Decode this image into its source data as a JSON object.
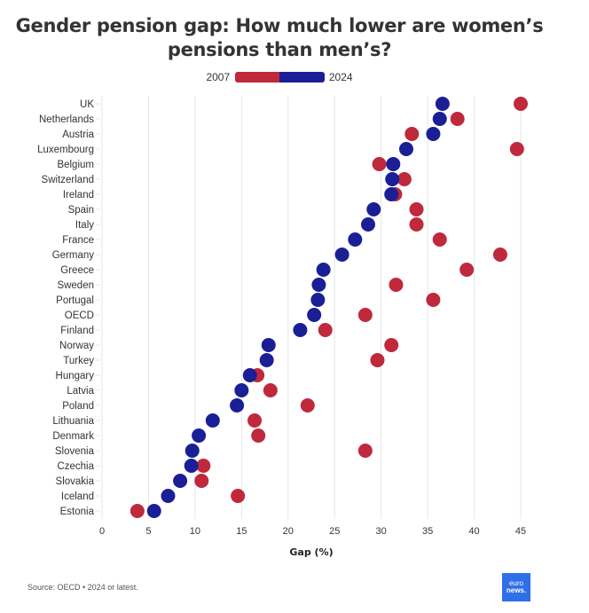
{
  "title_line1": "Gender pension gap: How much lower are women’s",
  "title_line2": "pensions than men’s?",
  "legend": {
    "left_label": "2007",
    "right_label": "2024",
    "colors": {
      "2007": "#c0283c",
      "2024": "#1a1f96"
    }
  },
  "footer": {
    "source": "Source: OECD • 2024 or latest."
  },
  "logo": {
    "line1": "euro",
    "line2": "news."
  },
  "chart_data": {
    "type": "scatter",
    "subtype": "dumbbell-dot",
    "title": "Gender pension gap: How much lower are women’s pensions than men’s?",
    "xlabel": "Gap (%)",
    "ylabel": "",
    "xlim": [
      0,
      45
    ],
    "xticks": [
      0,
      5,
      10,
      15,
      20,
      25,
      30,
      35,
      40,
      45
    ],
    "grid": true,
    "legend_position": "top-center",
    "categories": [
      "UK",
      "Netherlands",
      "Austria",
      "Luxembourg",
      "Belgium",
      "Switzerland",
      "Ireland",
      "Spain",
      "Italy",
      "France",
      "Germany",
      "Greece",
      "Sweden",
      "Portugal",
      "OECD",
      "Finland",
      "Norway",
      "Turkey",
      "Hungary",
      "Latvia",
      "Poland",
      "Lithuania",
      "Denmark",
      "Slovenia",
      "Czechia",
      "Slovakia",
      "Iceland",
      "Estonia"
    ],
    "series": [
      {
        "name": "2007",
        "color": "#c0283c",
        "values": [
          45.0,
          38.2,
          33.3,
          44.6,
          29.8,
          32.5,
          31.5,
          33.8,
          33.8,
          36.3,
          42.8,
          39.2,
          31.6,
          35.6,
          28.3,
          24.0,
          31.1,
          29.6,
          16.7,
          18.1,
          22.1,
          16.4,
          16.8,
          28.3,
          10.9,
          10.7,
          14.6,
          3.8
        ]
      },
      {
        "name": "2024",
        "color": "#1a1f96",
        "values": [
          36.6,
          36.3,
          35.6,
          32.7,
          31.3,
          31.2,
          31.1,
          29.2,
          28.6,
          27.2,
          25.8,
          23.8,
          23.3,
          23.2,
          22.8,
          21.3,
          17.9,
          17.7,
          15.9,
          15.0,
          14.5,
          11.9,
          10.4,
          9.7,
          9.6,
          8.4,
          7.1,
          5.6
        ]
      }
    ]
  }
}
